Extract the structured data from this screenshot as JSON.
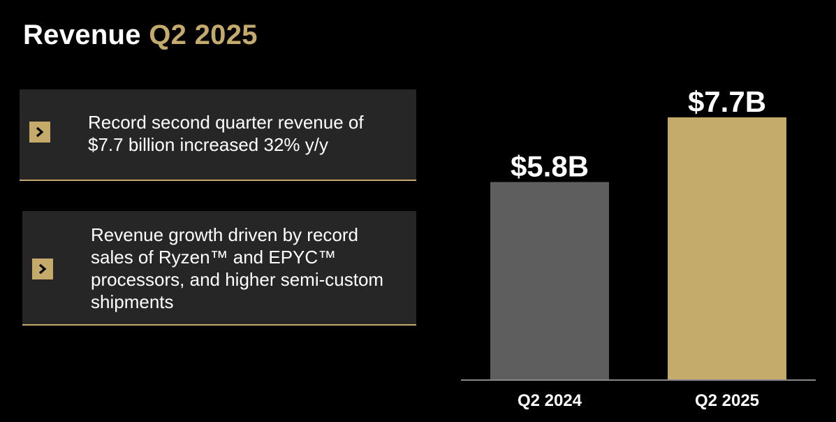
{
  "header": {
    "title_main": "Revenue",
    "title_accent": "Q2 2025"
  },
  "cards": [
    {
      "text": "Record second quarter revenue of $7.7 billion increased 32% y/y",
      "icon": "chevron-right-icon"
    },
    {
      "text": "Revenue growth driven by record sales of Ryzen™ and EPYC™ processors, and higher semi-custom shipments",
      "icon": "chevron-right-icon"
    }
  ],
  "colors": {
    "accent": "#c4ab6c",
    "bar_prior": "#5e5e5e",
    "bar_current": "#c4ab6c",
    "card_bg": "#262626",
    "axis": "#888888"
  },
  "chart_data": {
    "type": "bar",
    "categories": [
      "Q2 2024",
      "Q2 2025"
    ],
    "values": [
      5.8,
      7.7
    ],
    "data_labels": [
      "$5.8B",
      "$7.7B"
    ],
    "ylim": [
      0,
      7.7
    ],
    "grid": false,
    "title": "",
    "xlabel": "",
    "ylabel": ""
  }
}
